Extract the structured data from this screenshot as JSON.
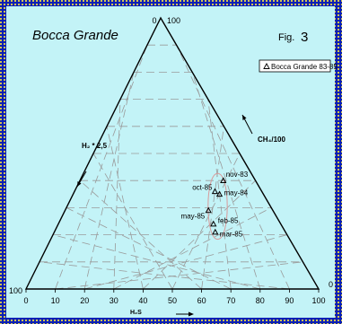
{
  "header": {
    "title": "Bocca Grande",
    "fig_prefix": "Fig.",
    "fig_number": "3"
  },
  "legend": {
    "label": "Bocca Grande 83-85",
    "position": "top-right"
  },
  "colors": {
    "border": "#0b1fb5",
    "border_dots": "#e9d64a",
    "background": "#c3f3f7",
    "grid": "#9a9a9a",
    "trend_curve": "#d89a9a",
    "ink": "#000000"
  },
  "chart_data": {
    "type": "scatter",
    "subtype": "ternary",
    "title": "Bocca Grande",
    "figure_label": "Fig. 3",
    "axes": {
      "bottom": {
        "label": "H₂S",
        "ticks": [
          "0",
          "10",
          "20",
          "30",
          "40",
          "50",
          "60",
          "70",
          "80",
          "90",
          "100"
        ],
        "range": [
          0,
          100
        ],
        "arrow": "right"
      },
      "left": {
        "label": "H₂ * 2,5",
        "arrow": "down"
      },
      "right": {
        "label": "CH₄/100",
        "arrow": "up"
      },
      "corner_labels": {
        "top_left": "0",
        "top_right": "100",
        "bottom_left": "100",
        "bottom_right": "0"
      }
    },
    "grid": true,
    "grid_step": 10,
    "series": [
      {
        "name": "Bocca Grande 83-85",
        "marker": "triangle-open",
        "points": [
          {
            "label": "nov-83",
            "h2s": 49,
            "ch4": 40
          },
          {
            "label": "oct-85",
            "h2s": 48,
            "ch4": 36
          },
          {
            "label": "may-84",
            "h2s": 50,
            "ch4": 35
          },
          {
            "label": "may-85",
            "h2s": 49,
            "ch4": 29
          },
          {
            "label": "feb-85",
            "h2s": 53,
            "ch4": 24
          },
          {
            "label": "mar-85",
            "h2s": 55,
            "ch4": 21
          }
        ]
      }
    ],
    "trend": "closed loop around the samples"
  }
}
